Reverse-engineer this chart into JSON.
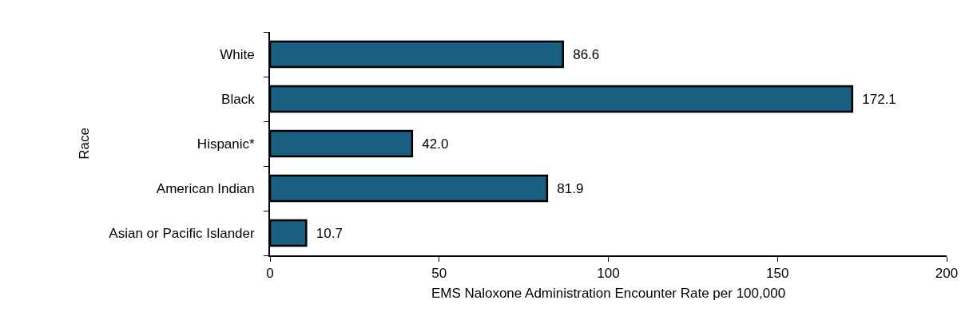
{
  "chart_data": {
    "type": "bar",
    "orientation": "horizontal",
    "xlabel": "EMS Naloxone Administration Encounter Rate per 100,000",
    "ylabel": "Race",
    "categories": [
      "White",
      "Black",
      "Hispanic*",
      "American Indian",
      "Asian or Pacific Islander"
    ],
    "values": [
      86.6,
      172.1,
      42.0,
      81.9,
      10.7
    ],
    "value_labels": [
      "86.6",
      "172.1",
      "42.0",
      "81.9",
      "10.7"
    ],
    "color": "#1a6080",
    "xlim": [
      0,
      200
    ],
    "xticks": [
      0,
      50,
      100,
      150,
      200
    ],
    "grid": false
  }
}
